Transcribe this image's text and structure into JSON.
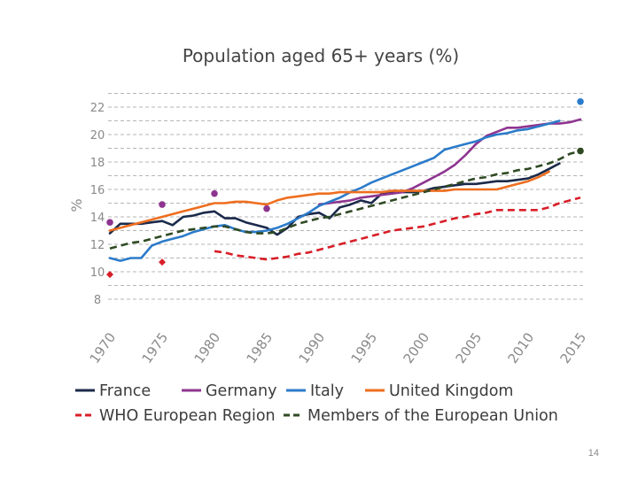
{
  "slide": {
    "page_number": "14"
  },
  "chart_data": {
    "type": "line",
    "title": "Population aged 65+ years (%)",
    "xlabel": "",
    "ylabel": "%",
    "xlim": [
      1970,
      2015
    ],
    "ylim": [
      8,
      23
    ],
    "y_ticks": [
      8,
      10,
      12,
      14,
      16,
      18,
      20,
      22
    ],
    "x_ticks": [
      1970,
      1975,
      1980,
      1985,
      1990,
      1995,
      2000,
      2005,
      2010,
      2015
    ],
    "grid": true,
    "legend_position": "bottom",
    "series": [
      {
        "name": "France",
        "color": "#1b2a4a",
        "dash": "solid",
        "x": [
          1970,
          1971,
          1972,
          1973,
          1974,
          1975,
          1976,
          1977,
          1978,
          1979,
          1980,
          1981,
          1982,
          1983,
          1984,
          1985,
          1986,
          1987,
          1988,
          1989,
          1990,
          1991,
          1992,
          1993,
          1994,
          1995,
          1996,
          1997,
          1998,
          1999,
          2000,
          2001,
          2002,
          2003,
          2004,
          2005,
          2006,
          2007,
          2008,
          2009,
          2010,
          2011,
          2012,
          2013
        ],
        "values": [
          12.8,
          13.5,
          13.5,
          13.5,
          13.6,
          13.7,
          13.4,
          14.0,
          14.1,
          14.3,
          14.4,
          13.9,
          13.9,
          13.6,
          13.4,
          13.2,
          12.7,
          13.2,
          14.0,
          14.2,
          14.3,
          13.9,
          14.7,
          14.9,
          15.2,
          15.0,
          15.7,
          15.8,
          15.8,
          15.8,
          15.9,
          16.1,
          16.2,
          16.3,
          16.4,
          16.4,
          16.5,
          16.6,
          16.6,
          16.7,
          16.8,
          17.1,
          17.5,
          17.9
        ]
      },
      {
        "name": "Germany",
        "color": "#8e3590",
        "dash": "solid",
        "x": [
          1990,
          1991,
          1992,
          1993,
          1994,
          1995,
          1996,
          1997,
          1998,
          1999,
          2000,
          2001,
          2002,
          2003,
          2004,
          2005,
          2006,
          2007,
          2008,
          2009,
          2010,
          2011,
          2012,
          2013,
          2014,
          2015
        ],
        "values": [
          14.9,
          15.0,
          15.1,
          15.2,
          15.4,
          15.5,
          15.6,
          15.7,
          15.8,
          16.1,
          16.5,
          16.9,
          17.3,
          17.8,
          18.5,
          19.3,
          19.9,
          20.2,
          20.5,
          20.5,
          20.6,
          20.7,
          20.8,
          20.8,
          20.9,
          21.1
        ]
      },
      {
        "name": "Italy",
        "color": "#2b7bca",
        "dash": "solid",
        "x": [
          1970,
          1971,
          1972,
          1973,
          1974,
          1975,
          1976,
          1977,
          1978,
          1979,
          1980,
          1981,
          1982,
          1983,
          1984,
          1985,
          1986,
          1987,
          1988,
          1989,
          1990,
          1991,
          1992,
          1993,
          1994,
          1995,
          1996,
          1997,
          1998,
          1999,
          2000,
          2001,
          2002,
          2003,
          2004,
          2005,
          2006,
          2007,
          2008,
          2009,
          2010,
          2011,
          2012,
          2013
        ],
        "values": [
          11.0,
          10.8,
          11.0,
          11.0,
          11.9,
          12.2,
          12.4,
          12.6,
          12.9,
          13.1,
          13.3,
          13.4,
          13.1,
          12.9,
          12.9,
          13.0,
          13.2,
          13.5,
          13.9,
          14.3,
          14.8,
          15.1,
          15.4,
          15.8,
          16.1,
          16.5,
          16.8,
          17.1,
          17.4,
          17.7,
          18.0,
          18.3,
          18.9,
          19.1,
          19.3,
          19.5,
          19.8,
          20.0,
          20.1,
          20.3,
          20.4,
          20.6,
          20.8,
          21.0
        ]
      },
      {
        "name": "United Kingdom",
        "color": "#ee6e1f",
        "dash": "solid",
        "x": [
          1970,
          1971,
          1972,
          1973,
          1974,
          1975,
          1976,
          1977,
          1978,
          1979,
          1980,
          1981,
          1982,
          1983,
          1984,
          1985,
          1986,
          1987,
          1988,
          1989,
          1990,
          1991,
          1992,
          1993,
          1994,
          1995,
          1996,
          1997,
          1998,
          1999,
          2000,
          2001,
          2002,
          2003,
          2004,
          2005,
          2006,
          2007,
          2008,
          2009,
          2010,
          2011,
          2012
        ],
        "values": [
          13.0,
          13.2,
          13.4,
          13.6,
          13.8,
          14.0,
          14.2,
          14.4,
          14.6,
          14.8,
          15.0,
          15.0,
          15.1,
          15.1,
          15.0,
          14.9,
          15.2,
          15.4,
          15.5,
          15.6,
          15.7,
          15.7,
          15.8,
          15.8,
          15.8,
          15.8,
          15.8,
          15.9,
          15.9,
          15.9,
          15.9,
          15.9,
          15.9,
          16.0,
          16.0,
          16.0,
          16.0,
          16.0,
          16.2,
          16.4,
          16.6,
          16.9,
          17.3
        ]
      },
      {
        "name": "WHO European Region",
        "color": "#d81e28",
        "dash": "dashed",
        "x": [
          1980,
          1981,
          1982,
          1983,
          1984,
          1985,
          1986,
          1987,
          1988,
          1989,
          1990,
          1991,
          1992,
          1993,
          1994,
          1995,
          1996,
          1997,
          1998,
          1999,
          2000,
          2001,
          2002,
          2003,
          2004,
          2005,
          2006,
          2007,
          2008,
          2009,
          2010,
          2011,
          2012,
          2013,
          2014,
          2015
        ],
        "values": [
          11.5,
          11.4,
          11.2,
          11.1,
          11.0,
          10.9,
          11.0,
          11.1,
          11.3,
          11.4,
          11.6,
          11.8,
          12.0,
          12.2,
          12.4,
          12.6,
          12.8,
          13.0,
          13.1,
          13.2,
          13.3,
          13.5,
          13.7,
          13.9,
          14.0,
          14.2,
          14.3,
          14.5,
          14.5,
          14.5,
          14.5,
          14.5,
          14.7,
          15.0,
          15.2,
          15.4
        ]
      },
      {
        "name": "Members of the European Union",
        "color": "#2f4a23",
        "dash": "dashed",
        "x": [
          1970,
          1971,
          1972,
          1973,
          1974,
          1975,
          1976,
          1977,
          1978,
          1979,
          1980,
          1981,
          1982,
          1983,
          1984,
          1985,
          1986,
          1987,
          1988,
          1989,
          1990,
          1991,
          1992,
          1993,
          1994,
          1995,
          1996,
          1997,
          1998,
          1999,
          2000,
          2001,
          2002,
          2003,
          2004,
          2005,
          2006,
          2007,
          2008,
          2009,
          2010,
          2011,
          2012,
          2013,
          2014,
          2015
        ],
        "values": [
          11.7,
          11.9,
          12.1,
          12.2,
          12.4,
          12.6,
          12.8,
          13.0,
          13.1,
          13.2,
          13.3,
          13.3,
          13.1,
          12.9,
          12.8,
          12.8,
          12.9,
          13.2,
          13.5,
          13.7,
          13.9,
          14.0,
          14.2,
          14.4,
          14.6,
          14.8,
          15.0,
          15.2,
          15.4,
          15.6,
          15.8,
          16.0,
          16.2,
          16.4,
          16.6,
          16.8,
          16.9,
          17.1,
          17.2,
          17.4,
          17.5,
          17.7,
          17.9,
          18.2,
          18.6,
          18.8
        ]
      }
    ],
    "point_markers": [
      {
        "series": "Germany",
        "x": 1970,
        "y": 13.6,
        "color": "#8e3590",
        "shape": "circle"
      },
      {
        "series": "Germany",
        "x": 1975,
        "y": 14.9,
        "color": "#8e3590",
        "shape": "circle"
      },
      {
        "series": "Germany",
        "x": 1980,
        "y": 15.7,
        "color": "#8e3590",
        "shape": "circle"
      },
      {
        "series": "Germany",
        "x": 1985,
        "y": 14.6,
        "color": "#8e3590",
        "shape": "circle"
      },
      {
        "series": "WHO European Region",
        "x": 1970,
        "y": 9.8,
        "color": "#d81e28",
        "shape": "diamond"
      },
      {
        "series": "WHO European Region",
        "x": 1975,
        "y": 10.7,
        "color": "#d81e28",
        "shape": "diamond"
      },
      {
        "series": "Italy",
        "x": 2015,
        "y": 22.4,
        "color": "#2b7bca",
        "shape": "circle"
      },
      {
        "series": "Members of the European Union",
        "x": 2015,
        "y": 18.8,
        "color": "#2f4a23",
        "shape": "circle"
      }
    ]
  }
}
